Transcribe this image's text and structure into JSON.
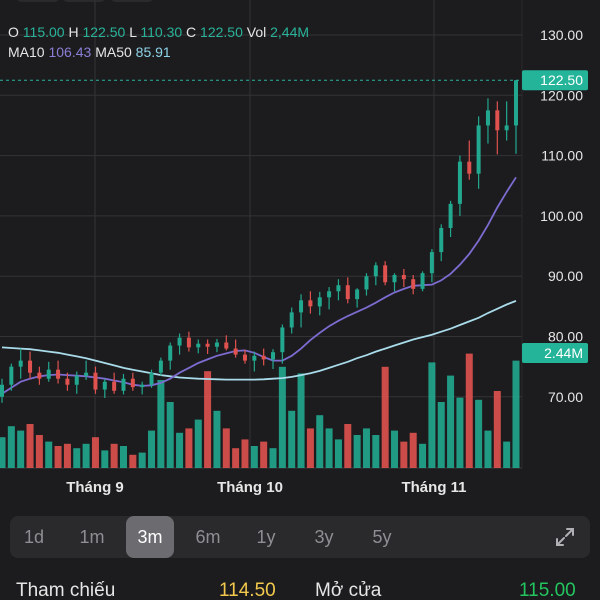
{
  "legend": {
    "o_label": "O",
    "o_value": "115.00",
    "h_label": "H",
    "h_value": "122.50",
    "l_label": "L",
    "l_value": "110.30",
    "c_label": "C",
    "c_value": "122.50",
    "vol_label": "Vol",
    "vol_value": "2,44M",
    "ma10_label": "MA10",
    "ma10_value": "106.43",
    "ma50_label": "MA50",
    "ma50_value": "85.91"
  },
  "colors": {
    "up": "#22a88f",
    "down": "#e0524f",
    "ma10": "#7d6bd0",
    "ma50": "#a9dbea",
    "grid": "#333336",
    "axis_text": "#e6e6e6",
    "highlight": "#24b49a"
  },
  "chart_data": {
    "type": "candlestick",
    "y_ticks": [
      "130.00",
      "120.00",
      "110.00",
      "100.00",
      "90.00",
      "80.00",
      "70.00"
    ],
    "ylim": [
      60,
      132
    ],
    "x_labels": [
      "Tháng 9",
      "Tháng 10",
      "Tháng 11"
    ],
    "last_price_label": "122.50",
    "last_volume_label": "2.44M",
    "ma10": [
      70.5,
      71.5,
      72.5,
      73,
      73.4,
      73.6,
      73.7,
      73.6,
      73.5,
      73.4,
      73.2,
      73,
      72.7,
      72.4,
      72,
      71.8,
      71.9,
      72.3,
      73,
      74,
      74.8,
      75.6,
      76.2,
      76.8,
      77.2,
      77.6,
      77.7,
      77.3,
      76.6,
      76,
      76,
      76.8,
      78,
      79.4,
      80.6,
      81.7,
      82.6,
      83.4,
      84.1,
      84.8,
      85.6,
      86.5,
      87.3,
      87.9,
      88.4,
      88.5,
      88.6,
      89.3,
      90.4,
      91.9,
      93.7,
      95.9,
      98.5,
      101.4,
      104,
      106.4
    ],
    "ma50": [
      78.2,
      78.1,
      78,
      77.9,
      77.7,
      77.5,
      77.3,
      77,
      76.7,
      76.4,
      76,
      75.6,
      75.2,
      74.8,
      74.5,
      74.2,
      73.9,
      73.6,
      73.4,
      73.2,
      73.1,
      73,
      72.95,
      72.9,
      72.85,
      72.85,
      72.85,
      72.85,
      72.9,
      73,
      73.1,
      73.3,
      73.6,
      73.9,
      74.3,
      74.8,
      75.3,
      75.8,
      76.4,
      76.9,
      77.5,
      78,
      78.5,
      79,
      79.5,
      79.9,
      80.3,
      80.8,
      81.3,
      81.9,
      82.5,
      83.1,
      83.9,
      84.6,
      85.3,
      85.9
    ],
    "candles": [
      [
        70,
        73,
        69,
        72
      ],
      [
        72,
        75.5,
        71,
        75
      ],
      [
        75,
        78,
        73,
        76
      ],
      [
        76,
        77.5,
        73,
        74
      ],
      [
        74,
        75,
        72,
        73
      ],
      [
        73,
        75.8,
        72.5,
        74.5
      ],
      [
        74.5,
        76,
        72.2,
        73
      ],
      [
        73,
        74,
        71,
        72
      ],
      [
        72,
        74.2,
        70.5,
        73.5
      ],
      [
        73.5,
        76,
        72.8,
        74
      ],
      [
        74,
        75,
        70.5,
        71.2
      ],
      [
        71.2,
        73,
        69.8,
        72.5
      ],
      [
        72.5,
        74,
        70.5,
        71
      ],
      [
        71,
        73.8,
        70.4,
        73
      ],
      [
        73,
        74,
        71,
        71.6
      ],
      [
        71.6,
        72.5,
        70.4,
        72
      ],
      [
        72,
        74.5,
        71.5,
        74
      ],
      [
        74,
        76.5,
        73.5,
        76
      ],
      [
        76,
        79,
        74.5,
        78.5
      ],
      [
        78.5,
        80.5,
        77,
        79.8
      ],
      [
        79.8,
        80.8,
        77.5,
        78.2
      ],
      [
        78.2,
        79.5,
        77.2,
        78.8
      ],
      [
        78.8,
        79.5,
        77.1,
        78.3
      ],
      [
        78.3,
        79.6,
        77.4,
        79
      ],
      [
        79,
        80.2,
        77.7,
        78
      ],
      [
        78,
        79.5,
        76.5,
        77
      ],
      [
        77,
        77.8,
        75.5,
        76
      ],
      [
        76,
        77.5,
        74.2,
        76.8
      ],
      [
        76.8,
        78,
        75.2,
        76.2
      ],
      [
        76.2,
        77.9,
        74.6,
        77.4
      ],
      [
        77.4,
        82,
        75.5,
        81.5
      ],
      [
        81.5,
        84.8,
        80.5,
        84
      ],
      [
        84,
        87,
        81.5,
        86
      ],
      [
        86,
        87.5,
        83.8,
        85
      ],
      [
        85,
        87.4,
        83.5,
        86.5
      ],
      [
        86.5,
        88.2,
        84.5,
        87.5
      ],
      [
        87.5,
        89.5,
        86,
        88.5
      ],
      [
        88.5,
        89.8,
        85.5,
        86.2
      ],
      [
        86.2,
        88,
        84.8,
        87.8
      ],
      [
        87.8,
        90.5,
        86.8,
        90
      ],
      [
        90,
        92.3,
        88.5,
        91.8
      ],
      [
        91.8,
        92.5,
        88.5,
        89
      ],
      [
        89,
        90.5,
        87.5,
        90.2
      ],
      [
        90.2,
        91.2,
        88.2,
        89.5
      ],
      [
        89.5,
        90.2,
        87,
        87.9
      ],
      [
        87.9,
        90.8,
        87.5,
        90.5
      ],
      [
        90.5,
        94.5,
        89,
        94
      ],
      [
        94,
        98.6,
        92.5,
        98
      ],
      [
        98,
        102.5,
        96.5,
        102
      ],
      [
        102,
        110,
        100,
        109
      ],
      [
        109,
        112.5,
        106,
        107
      ],
      [
        107,
        116.5,
        104.5,
        115
      ],
      [
        115,
        119.5,
        112,
        117.5
      ],
      [
        117.5,
        119,
        110.2,
        114.2
      ],
      [
        114.2,
        119,
        112.5,
        115
      ],
      [
        115,
        122.5,
        110.3,
        122.5
      ]
    ],
    "volume": [
      0.7,
      0.95,
      0.85,
      1.0,
      0.75,
      0.6,
      0.5,
      0.55,
      0.45,
      0.55,
      0.7,
      0.4,
      0.55,
      0.5,
      0.3,
      0.35,
      0.85,
      2.0,
      1.5,
      0.8,
      0.9,
      1.1,
      2.2,
      1.3,
      0.9,
      0.45,
      0.65,
      0.5,
      0.6,
      0.45,
      2.3,
      1.3,
      2.15,
      0.9,
      1.2,
      0.9,
      0.65,
      1.0,
      0.75,
      0.9,
      0.75,
      2.3,
      0.85,
      0.6,
      0.8,
      0.55,
      2.4,
      1.5,
      2.1,
      1.6,
      2.6,
      1.55,
      0.85,
      1.75,
      0.6,
      2.44
    ]
  },
  "ranges": [
    "1d",
    "1m",
    "3m",
    "6m",
    "1y",
    "3y",
    "5y"
  ],
  "active_range": "3m",
  "stats": {
    "ref_label": "Tham chiếu",
    "ref_value": "114.50",
    "ref_color": "#f2c94c",
    "open_label": "Mở cửa",
    "open_value": "115.00",
    "open_color": "#22c55e"
  }
}
